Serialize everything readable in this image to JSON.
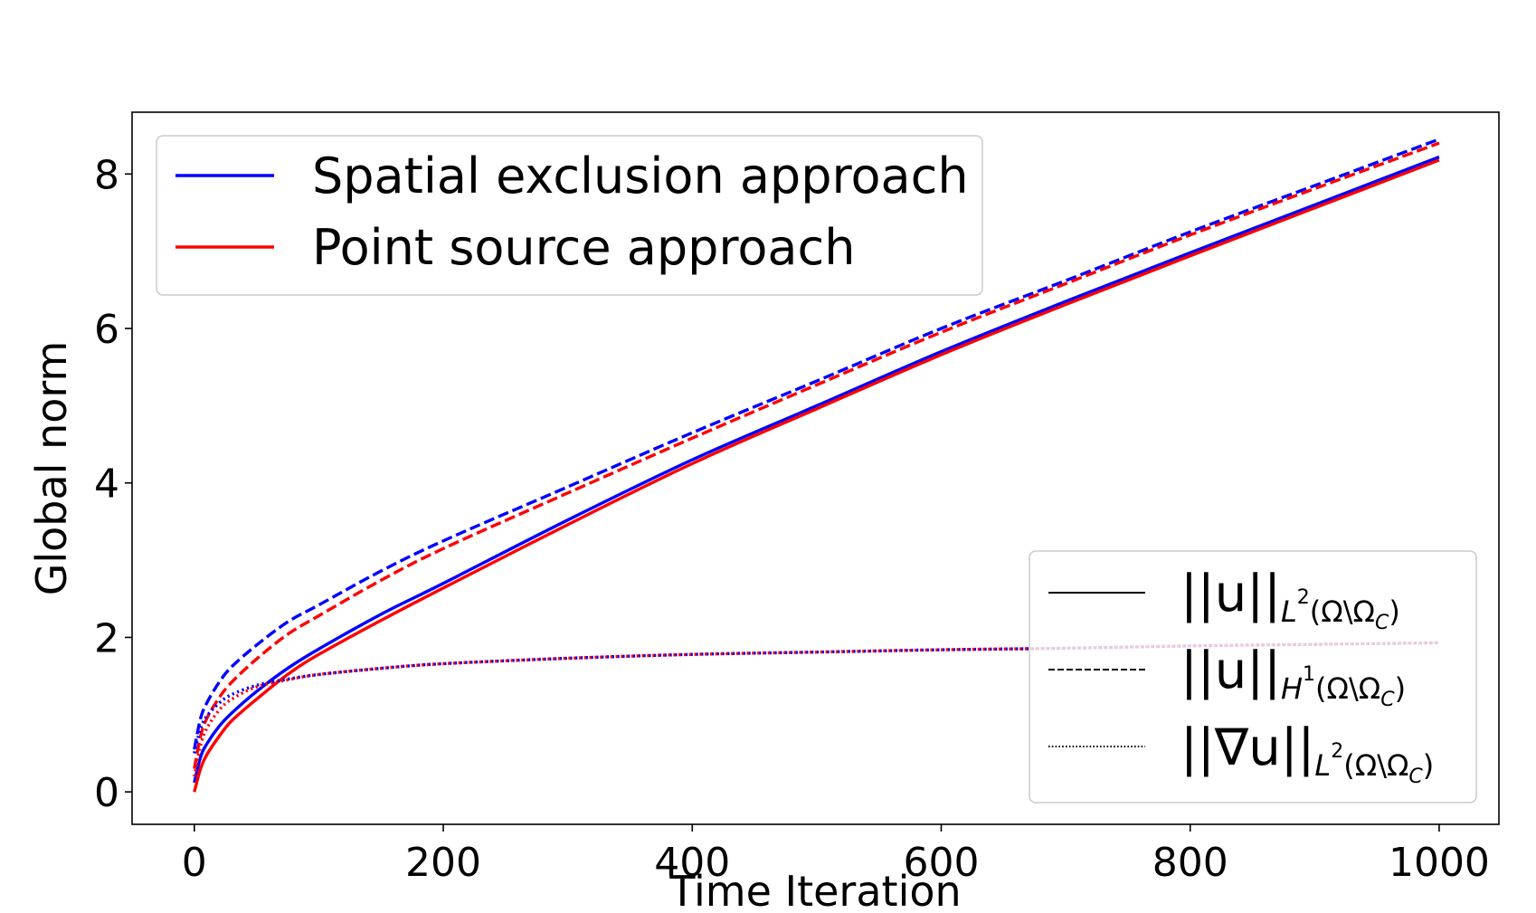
{
  "chart_data": {
    "type": "line",
    "xlabel": "Time Iteration",
    "ylabel": "Global norm",
    "xlim": [
      -50,
      1048
    ],
    "ylim": [
      -0.42,
      8.8
    ],
    "xticks": [
      "0",
      "200",
      "400",
      "600",
      "800",
      "1000"
    ],
    "yticks": [
      "0",
      "2",
      "4",
      "6",
      "8"
    ],
    "grid": false,
    "colors": {
      "spatial": "#0000ff",
      "point": "#ff0000"
    },
    "legend_color": {
      "placement": "upper-left",
      "entries": [
        {
          "label": "Spatial exclusion approach",
          "color": "#0000ff"
        },
        {
          "label": "Point source approach",
          "color": "#ff0000"
        }
      ]
    },
    "legend_style": {
      "placement": "lower-right",
      "entries": [
        {
          "style": "solid",
          "norm": "||u||",
          "sub": "L",
          "sup": "2",
          "domain": "(Ω\\Ω",
          "domain_sub": "C",
          "close": ")"
        },
        {
          "style": "dashed",
          "norm": "||u||",
          "sub": "H",
          "sup": "1",
          "domain": "(Ω\\Ω",
          "domain_sub": "C",
          "close": ")"
        },
        {
          "style": "dotted",
          "norm": "||∇u||",
          "sub": "L",
          "sup": "2",
          "domain": "(Ω\\Ω",
          "domain_sub": "C",
          "close": ")"
        }
      ]
    },
    "x": [
      0,
      5,
      10,
      20,
      30,
      50,
      75,
      100,
      150,
      200,
      300,
      400,
      500,
      600,
      700,
      800,
      900,
      1000
    ],
    "series": [
      {
        "approach": "spatial",
        "norm": "L2",
        "style": "solid",
        "color": "#0000ff",
        "values": [
          0.12,
          0.45,
          0.62,
          0.85,
          1.02,
          1.3,
          1.6,
          1.85,
          2.3,
          2.7,
          3.52,
          4.3,
          5.0,
          5.7,
          6.35,
          6.98,
          7.6,
          8.22
        ]
      },
      {
        "approach": "point",
        "norm": "L2",
        "style": "solid",
        "color": "#ff0000",
        "values": [
          0.0,
          0.3,
          0.48,
          0.72,
          0.92,
          1.2,
          1.52,
          1.78,
          2.22,
          2.64,
          3.46,
          4.25,
          4.96,
          5.66,
          6.31,
          6.94,
          7.56,
          8.18
        ]
      },
      {
        "approach": "spatial",
        "norm": "H1",
        "style": "dashed",
        "color": "#0000ff",
        "values": [
          0.55,
          0.95,
          1.15,
          1.42,
          1.62,
          1.9,
          2.2,
          2.42,
          2.86,
          3.25,
          3.95,
          4.65,
          5.32,
          6.0,
          6.62,
          7.25,
          7.85,
          8.45
        ]
      },
      {
        "approach": "point",
        "norm": "H1",
        "style": "dashed",
        "color": "#ff0000",
        "values": [
          0.3,
          0.72,
          0.95,
          1.22,
          1.42,
          1.72,
          2.04,
          2.28,
          2.74,
          3.15,
          3.87,
          4.58,
          5.27,
          5.95,
          6.58,
          7.21,
          7.81,
          8.4
        ]
      },
      {
        "approach": "spatial",
        "norm": "grad L2",
        "style": "dotted",
        "color": "#0000ff",
        "values": [
          0.5,
          0.82,
          0.98,
          1.15,
          1.26,
          1.38,
          1.46,
          1.52,
          1.6,
          1.66,
          1.73,
          1.78,
          1.81,
          1.84,
          1.86,
          1.89,
          1.91,
          1.93
        ]
      },
      {
        "approach": "point",
        "norm": "grad L2",
        "style": "dotted",
        "color": "#ff0000",
        "values": [
          0.2,
          0.6,
          0.82,
          1.06,
          1.2,
          1.36,
          1.45,
          1.52,
          1.6,
          1.66,
          1.73,
          1.78,
          1.81,
          1.84,
          1.86,
          1.89,
          1.91,
          1.93
        ]
      }
    ]
  }
}
